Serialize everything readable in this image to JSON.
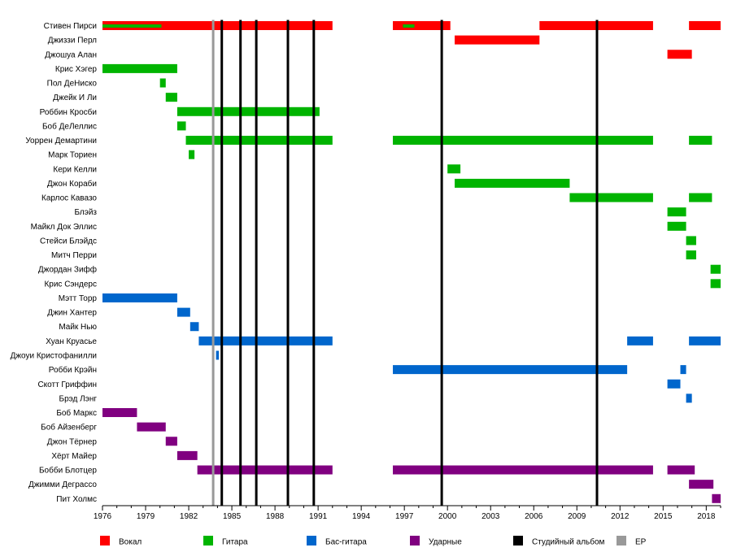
{
  "chart_data": {
    "type": "timeline",
    "x_range": [
      1976,
      2019
    ],
    "x_ticks": [
      1976,
      1979,
      1982,
      1985,
      1988,
      1991,
      1994,
      1997,
      2000,
      2003,
      2006,
      2009,
      2012,
      2015,
      2018
    ],
    "colors": {
      "vocal": "#ff0000",
      "guitar": "#00b400",
      "bass": "#0066cc",
      "drums": "#800080",
      "album": "#000000",
      "ep": "#999999"
    },
    "legend": [
      {
        "key": "vocal",
        "label": "Вокал"
      },
      {
        "key": "guitar",
        "label": "Гитара"
      },
      {
        "key": "bass",
        "label": "Бас-гитара"
      },
      {
        "key": "drums",
        "label": "Ударные"
      },
      {
        "key": "album",
        "label": "Студийный альбом"
      },
      {
        "key": "ep",
        "label": "EP"
      }
    ],
    "albums": [
      1984.3,
      1985.6,
      1986.7,
      1988.9,
      1990.7,
      1999.6,
      2010.4
    ],
    "eps": [
      1983.7
    ],
    "members": [
      {
        "name": "Стивен Пирси",
        "spans": [
          {
            "role": "vocal",
            "start": 1976.0,
            "end": 1992.0
          },
          {
            "role": "vocal",
            "start": 1996.2,
            "end": 2000.2
          },
          {
            "role": "vocal",
            "start": 2006.4,
            "end": 2014.3
          },
          {
            "role": "vocal",
            "start": 2016.8,
            "end": 2019.0
          }
        ],
        "sub_spans": [
          {
            "role": "guitar",
            "start": 1976.0,
            "end": 1980.1
          },
          {
            "role": "guitar",
            "start": 1996.9,
            "end": 1997.7
          }
        ]
      },
      {
        "name": "Джиззи Перл",
        "spans": [
          {
            "role": "vocal",
            "start": 2000.5,
            "end": 2006.4
          }
        ]
      },
      {
        "name": "Джошуа Алан",
        "spans": [
          {
            "role": "vocal",
            "start": 2015.3,
            "end": 2017.0
          }
        ]
      },
      {
        "name": "Крис Хэгер",
        "spans": [
          {
            "role": "guitar",
            "start": 1976.0,
            "end": 1981.2
          }
        ]
      },
      {
        "name": "Пол ДеНиско",
        "spans": [
          {
            "role": "guitar",
            "start": 1980.0,
            "end": 1980.4
          }
        ]
      },
      {
        "name": "Джейк И Ли",
        "spans": [
          {
            "role": "guitar",
            "start": 1980.4,
            "end": 1981.2
          }
        ]
      },
      {
        "name": "Роббин Кросби",
        "spans": [
          {
            "role": "guitar",
            "start": 1981.2,
            "end": 1991.1
          }
        ]
      },
      {
        "name": "Боб ДеЛеллис",
        "spans": [
          {
            "role": "guitar",
            "start": 1981.2,
            "end": 1981.8
          }
        ]
      },
      {
        "name": "Уоррен Демартини",
        "spans": [
          {
            "role": "guitar",
            "start": 1981.8,
            "end": 1992.0
          },
          {
            "role": "guitar",
            "start": 1996.2,
            "end": 2014.3
          },
          {
            "role": "guitar",
            "start": 2016.8,
            "end": 2018.4
          }
        ]
      },
      {
        "name": "Марк Ториен",
        "spans": [
          {
            "role": "guitar",
            "start": 1982.0,
            "end": 1982.4
          }
        ]
      },
      {
        "name": "Кери Келли",
        "spans": [
          {
            "role": "guitar",
            "start": 2000.0,
            "end": 2000.9
          }
        ]
      },
      {
        "name": "Джон Кораби",
        "spans": [
          {
            "role": "guitar",
            "start": 2000.5,
            "end": 2008.5
          }
        ]
      },
      {
        "name": "Карлос Кавазо",
        "spans": [
          {
            "role": "guitar",
            "start": 2008.5,
            "end": 2014.3
          },
          {
            "role": "guitar",
            "start": 2016.8,
            "end": 2018.4
          }
        ]
      },
      {
        "name": "Блэйз",
        "spans": [
          {
            "role": "guitar",
            "start": 2015.3,
            "end": 2016.6
          }
        ]
      },
      {
        "name": "Майкл Док Эллис",
        "spans": [
          {
            "role": "guitar",
            "start": 2015.3,
            "end": 2016.6
          }
        ]
      },
      {
        "name": "Стейси Блэйдс",
        "spans": [
          {
            "role": "guitar",
            "start": 2016.6,
            "end": 2017.3
          }
        ]
      },
      {
        "name": "Митч Перри",
        "spans": [
          {
            "role": "guitar",
            "start": 2016.6,
            "end": 2017.3
          }
        ]
      },
      {
        "name": "Джордан Зифф",
        "spans": [
          {
            "role": "guitar",
            "start": 2018.3,
            "end": 2019.0
          }
        ]
      },
      {
        "name": "Крис Сэндерс",
        "spans": [
          {
            "role": "guitar",
            "start": 2018.3,
            "end": 2019.0
          }
        ]
      },
      {
        "name": "Мэтт Торр",
        "spans": [
          {
            "role": "bass",
            "start": 1976.0,
            "end": 1981.2
          }
        ]
      },
      {
        "name": "Джин Хантер",
        "spans": [
          {
            "role": "bass",
            "start": 1981.2,
            "end": 1982.1
          }
        ]
      },
      {
        "name": "Майк Нью",
        "spans": [
          {
            "role": "bass",
            "start": 1982.1,
            "end": 1982.7
          }
        ]
      },
      {
        "name": "Хуан Круасье",
        "spans": [
          {
            "role": "bass",
            "start": 1982.7,
            "end": 1992.0
          },
          {
            "role": "bass",
            "start": 2012.5,
            "end": 2014.3
          },
          {
            "role": "bass",
            "start": 2016.8,
            "end": 2019.0
          }
        ]
      },
      {
        "name": "Джоуи Кристофанилли",
        "spans": [
          {
            "role": "bass",
            "start": 1983.9,
            "end": 1984.1
          }
        ]
      },
      {
        "name": "Робби Крэйн",
        "spans": [
          {
            "role": "bass",
            "start": 1996.2,
            "end": 2012.5
          },
          {
            "role": "bass",
            "start": 2016.2,
            "end": 2016.6
          }
        ]
      },
      {
        "name": "Скотт Гриффин",
        "spans": [
          {
            "role": "bass",
            "start": 2015.3,
            "end": 2016.2
          }
        ]
      },
      {
        "name": "Брэд Лэнг",
        "spans": [
          {
            "role": "bass",
            "start": 2016.6,
            "end": 2017.0
          }
        ]
      },
      {
        "name": "Боб Маркс",
        "spans": [
          {
            "role": "drums",
            "start": 1976.0,
            "end": 1978.4
          }
        ]
      },
      {
        "name": "Боб Айзенберг",
        "spans": [
          {
            "role": "drums",
            "start": 1978.4,
            "end": 1980.4
          }
        ]
      },
      {
        "name": "Джон Тёрнер",
        "spans": [
          {
            "role": "drums",
            "start": 1980.4,
            "end": 1981.2
          }
        ]
      },
      {
        "name": "Хёрт Майер",
        "spans": [
          {
            "role": "drums",
            "start": 1981.2,
            "end": 1982.6
          }
        ]
      },
      {
        "name": "Бобби Блотцер",
        "spans": [
          {
            "role": "drums",
            "start": 1982.6,
            "end": 1992.0
          },
          {
            "role": "drums",
            "start": 1996.2,
            "end": 2014.3
          },
          {
            "role": "drums",
            "start": 2015.3,
            "end": 2017.2
          }
        ]
      },
      {
        "name": "Джимми Деграссо",
        "spans": [
          {
            "role": "drums",
            "start": 2016.8,
            "end": 2018.5
          }
        ]
      },
      {
        "name": "Пит Холмс",
        "spans": [
          {
            "role": "drums",
            "start": 2018.4,
            "end": 2019.0
          }
        ]
      }
    ]
  }
}
